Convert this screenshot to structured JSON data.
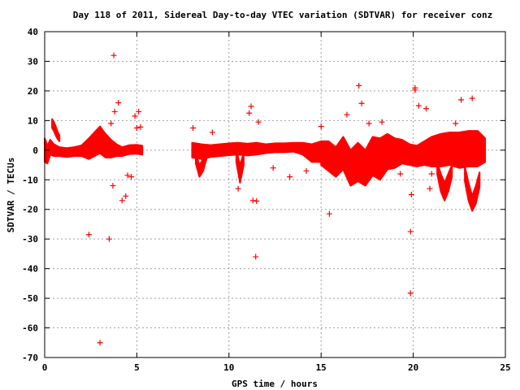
{
  "chart_data": {
    "type": "scatter",
    "title": "Day 118 of 2011, Sidereal Day-to-day VTEC variation (SDTVAR) for receiver conz",
    "xlabel": "GPS time / hours",
    "ylabel": "SDTVAR / TECUs",
    "xlim": [
      0,
      25
    ],
    "ylim": [
      -70,
      40
    ],
    "xticks": [
      "0",
      "5",
      "10",
      "15",
      "20",
      "25"
    ],
    "yticks": [
      "40",
      "30",
      "20",
      "10",
      "0",
      "-10",
      "-20",
      "-30",
      "-40",
      "-50",
      "-60",
      "-70"
    ],
    "xtick_values": [
      0,
      5,
      10,
      15,
      20,
      25
    ],
    "ytick_values": [
      40,
      30,
      20,
      10,
      0,
      -10,
      -20,
      -30,
      -40,
      -50,
      -60,
      -70
    ],
    "grid": true,
    "marker": "plus",
    "color": "#ff0000",
    "bands": [
      {
        "x": [
          0.0,
          0.15,
          0.3,
          0.5,
          0.8,
          1.2,
          1.6,
          2.0,
          2.4,
          2.7,
          3.0,
          3.3,
          3.6,
          3.9,
          4.2,
          4.6,
          5.0,
          5.3
        ],
        "y": [
          0.0,
          -1.5,
          1.0,
          0.0,
          -0.5,
          -0.8,
          -0.5,
          -0.2,
          0.5,
          2.0,
          3.5,
          1.5,
          0.5,
          0.0,
          -0.5,
          0.2,
          0.3,
          0.0
        ],
        "half": [
          4.0,
          3.0,
          2.5,
          2.0,
          1.5,
          1.5,
          1.5,
          1.8,
          3.5,
          4.0,
          4.5,
          4.0,
          3.0,
          2.0,
          1.5,
          1.5,
          1.5,
          1.5
        ]
      },
      {
        "x": [
          8.0,
          8.5,
          9.0,
          9.5,
          10.0,
          10.5,
          11.0,
          11.5,
          12.0,
          12.5,
          13.0,
          13.5,
          14.0,
          14.5,
          15.0
        ],
        "y": [
          0.0,
          -0.5,
          -0.3,
          0.0,
          0.3,
          0.5,
          0.2,
          0.5,
          0.5,
          0.8,
          0.8,
          1.0,
          0.5,
          -1.0,
          -0.5
        ],
        "half": [
          2.5,
          2.5,
          2.0,
          2.0,
          2.0,
          2.0,
          2.0,
          2.0,
          1.5,
          1.5,
          1.5,
          1.5,
          2.0,
          3.0,
          3.5
        ]
      },
      {
        "x": [
          15.0,
          15.4,
          15.8,
          16.2,
          16.6,
          17.0,
          17.4,
          17.8,
          18.2,
          18.6,
          19.0,
          19.4,
          19.8,
          20.2,
          20.6,
          21.0,
          21.5,
          22.0,
          22.5,
          23.0,
          23.5,
          23.9
        ],
        "y": [
          -1.0,
          -2.0,
          -4.0,
          -1.0,
          -6.0,
          -4.0,
          -6.0,
          -2.0,
          -3.0,
          -0.5,
          -1.0,
          -0.5,
          -1.5,
          -2.0,
          -1.0,
          -0.5,
          0.0,
          0.5,
          0.0,
          0.5,
          0.5,
          0.0
        ],
        "half": [
          4.0,
          5.0,
          5.0,
          5.5,
          6.0,
          6.5,
          6.0,
          6.5,
          7.0,
          6.0,
          5.0,
          4.0,
          3.5,
          3.5,
          4.0,
          5.0,
          5.5,
          5.5,
          6.0,
          6.0,
          6.0,
          4.0
        ]
      },
      {
        "x": [
          0.4,
          0.5,
          0.6,
          0.7,
          0.8
        ],
        "y": [
          9.0,
          8.0,
          6.5,
          5.0,
          4.0
        ],
        "half": [
          1.5,
          1.5,
          1.5,
          1.2,
          1.0
        ]
      },
      {
        "x": [
          21.3,
          21.5,
          21.7,
          21.9,
          22.1
        ],
        "y": [
          -6.0,
          -11.0,
          -14.0,
          -11.0,
          -7.0
        ],
        "half": [
          2.0,
          3.0,
          3.0,
          3.0,
          2.0
        ]
      },
      {
        "x": [
          22.8,
          23.0,
          23.2,
          23.4,
          23.6
        ],
        "y": [
          -8.0,
          -14.0,
          -18.0,
          -15.0,
          -10.0
        ],
        "half": [
          2.5,
          3.0,
          2.5,
          3.0,
          2.5
        ]
      },
      {
        "x": [
          8.2,
          8.4,
          8.6,
          8.8
        ],
        "y": [
          -3.0,
          -7.0,
          -5.0,
          -1.0
        ],
        "half": [
          1.5,
          2.0,
          2.0,
          1.5
        ]
      },
      {
        "x": [
          10.4,
          10.6,
          10.8
        ],
        "y": [
          -2.0,
          -8.0,
          -3.0
        ],
        "half": [
          2.0,
          3.0,
          2.0
        ]
      }
    ],
    "outliers": [
      [
        3.75,
        32
      ],
      [
        2.4,
        -28.5
      ],
      [
        3.5,
        -30
      ],
      [
        3.0,
        -65
      ],
      [
        11.45,
        -36
      ],
      [
        17.05,
        21.8
      ],
      [
        17.2,
        15.8
      ],
      [
        15.45,
        -21.5
      ],
      [
        19.85,
        -27.5
      ],
      [
        19.85,
        -48.3
      ],
      [
        20.1,
        21
      ],
      [
        20.1,
        20.3
      ],
      [
        20.3,
        15
      ],
      [
        20.7,
        14
      ],
      [
        22.6,
        17
      ],
      [
        23.2,
        17.5
      ],
      [
        3.8,
        13
      ],
      [
        4.0,
        16
      ],
      [
        3.6,
        9
      ],
      [
        4.2,
        -17
      ],
      [
        4.4,
        -15.5
      ],
      [
        3.7,
        -12
      ],
      [
        4.9,
        11.5
      ],
      [
        5.1,
        13
      ],
      [
        5.0,
        7.5
      ],
      [
        5.2,
        7.8
      ],
      [
        4.7,
        -9
      ],
      [
        4.5,
        -8.5
      ],
      [
        11.2,
        14.8
      ],
      [
        11.1,
        12.5
      ],
      [
        11.3,
        -17
      ],
      [
        11.5,
        -17.2
      ],
      [
        11.6,
        9.5
      ],
      [
        10.5,
        -13
      ],
      [
        8.05,
        7.5
      ],
      [
        9.1,
        6
      ],
      [
        14.2,
        -7
      ],
      [
        15.0,
        8
      ],
      [
        16.4,
        12
      ],
      [
        17.6,
        9
      ],
      [
        18.3,
        9.5
      ],
      [
        22.3,
        9
      ],
      [
        21.0,
        -8
      ],
      [
        20.9,
        -13
      ],
      [
        19.9,
        -15
      ],
      [
        19.3,
        -8
      ],
      [
        13.3,
        -9
      ],
      [
        12.4,
        -6
      ]
    ]
  }
}
